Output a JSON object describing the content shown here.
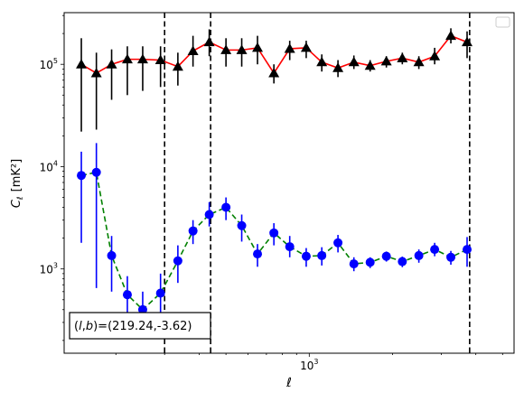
{
  "chart_data": {
    "type": "scatter",
    "title": "",
    "xlabel": "ℓ",
    "ylabel_symbol": "C",
    "ylabel_subscript": "ℓ",
    "ylabel_units": "[mK²]",
    "xscale": "log",
    "yscale": "log",
    "xlim": [
      130,
      5500
    ],
    "ylim": [
      150,
      320000
    ],
    "grid": false,
    "legend": "top-right (empty box)",
    "x_major_ticks": [
      {
        "value": 1000,
        "base": "10",
        "exponent": "3"
      }
    ],
    "y_major_ticks": [
      {
        "value": 1000,
        "base": "10",
        "exponent": "3"
      },
      {
        "value": 10000,
        "base": "10",
        "exponent": "4"
      },
      {
        "value": 100000,
        "base": "10",
        "exponent": "5"
      }
    ],
    "vlines": [
      300,
      440,
      3800
    ],
    "annotation": {
      "text_prefix": "(",
      "l": "l",
      "comma": ",",
      "b": "b",
      "text_suffix": ")=(219.24,-3.62)"
    },
    "series": [
      {
        "marker": "triangle",
        "color": "#000000",
        "line_color": "#ff0000",
        "line_style": "solid",
        "errorbar_color": "#000000",
        "points": [
          {
            "x": 150,
            "y": 100000,
            "lo": 22000,
            "hi": 180000
          },
          {
            "x": 170,
            "y": 82000,
            "lo": 23000,
            "hi": 130000
          },
          {
            "x": 193,
            "y": 100000,
            "lo": 45000,
            "hi": 140000
          },
          {
            "x": 220,
            "y": 112000,
            "lo": 50000,
            "hi": 150000
          },
          {
            "x": 250,
            "y": 112000,
            "lo": 55000,
            "hi": 150000
          },
          {
            "x": 290,
            "y": 110000,
            "lo": 60000,
            "hi": 150000
          },
          {
            "x": 335,
            "y": 95000,
            "lo": 62000,
            "hi": 130000
          },
          {
            "x": 380,
            "y": 135000,
            "lo": 95000,
            "hi": 190000
          },
          {
            "x": 435,
            "y": 165000,
            "lo": 120000,
            "hi": 220000
          },
          {
            "x": 500,
            "y": 138000,
            "lo": 95000,
            "hi": 180000
          },
          {
            "x": 570,
            "y": 138000,
            "lo": 95000,
            "hi": 180000
          },
          {
            "x": 650,
            "y": 145000,
            "lo": 100000,
            "hi": 190000
          },
          {
            "x": 745,
            "y": 82000,
            "lo": 65000,
            "hi": 100000
          },
          {
            "x": 850,
            "y": 142000,
            "lo": 110000,
            "hi": 170000
          },
          {
            "x": 975,
            "y": 145000,
            "lo": 115000,
            "hi": 170000
          },
          {
            "x": 1110,
            "y": 105000,
            "lo": 85000,
            "hi": 125000
          },
          {
            "x": 1270,
            "y": 92000,
            "lo": 75000,
            "hi": 110000
          },
          {
            "x": 1450,
            "y": 105000,
            "lo": 90000,
            "hi": 122000
          },
          {
            "x": 1660,
            "y": 97000,
            "lo": 85000,
            "hi": 110000
          },
          {
            "x": 1900,
            "y": 107000,
            "lo": 93000,
            "hi": 120000
          },
          {
            "x": 2170,
            "y": 115000,
            "lo": 100000,
            "hi": 130000
          },
          {
            "x": 2490,
            "y": 105000,
            "lo": 90000,
            "hi": 120000
          },
          {
            "x": 2840,
            "y": 120000,
            "lo": 100000,
            "hi": 145000
          },
          {
            "x": 3250,
            "y": 190000,
            "lo": 160000,
            "hi": 225000
          },
          {
            "x": 3720,
            "y": 165000,
            "lo": 115000,
            "hi": 210000
          }
        ]
      },
      {
        "marker": "circle",
        "color": "#0000ff",
        "line_color": "#008000",
        "line_style": "dashed",
        "errorbar_color": "#0000ff",
        "points": [
          {
            "x": 150,
            "y": 8200,
            "lo": 1800,
            "hi": 14000
          },
          {
            "x": 170,
            "y": 8800,
            "lo": 650,
            "hi": 17000
          },
          {
            "x": 193,
            "y": 1350,
            "lo": 600,
            "hi": 2100
          },
          {
            "x": 220,
            "y": 560,
            "lo": 250,
            "hi": 850
          },
          {
            "x": 250,
            "y": 400,
            "lo": 250,
            "hi": 600
          },
          {
            "x": 290,
            "y": 580,
            "lo": 240,
            "hi": 900
          },
          {
            "x": 335,
            "y": 1200,
            "lo": 730,
            "hi": 1700
          },
          {
            "x": 380,
            "y": 2350,
            "lo": 1750,
            "hi": 3000
          },
          {
            "x": 435,
            "y": 3400,
            "lo": 2600,
            "hi": 4500
          },
          {
            "x": 500,
            "y": 4000,
            "lo": 3000,
            "hi": 5000
          },
          {
            "x": 570,
            "y": 2650,
            "lo": 1850,
            "hi": 3400
          },
          {
            "x": 650,
            "y": 1400,
            "lo": 1050,
            "hi": 1750
          },
          {
            "x": 745,
            "y": 2250,
            "lo": 1700,
            "hi": 2800
          },
          {
            "x": 850,
            "y": 1650,
            "lo": 1300,
            "hi": 2100
          },
          {
            "x": 975,
            "y": 1330,
            "lo": 1050,
            "hi": 1600
          },
          {
            "x": 1110,
            "y": 1350,
            "lo": 1080,
            "hi": 1630
          },
          {
            "x": 1270,
            "y": 1800,
            "lo": 1450,
            "hi": 2150
          },
          {
            "x": 1450,
            "y": 1120,
            "lo": 950,
            "hi": 1300
          },
          {
            "x": 1660,
            "y": 1160,
            "lo": 1020,
            "hi": 1300
          },
          {
            "x": 1900,
            "y": 1330,
            "lo": 1180,
            "hi": 1480
          },
          {
            "x": 2170,
            "y": 1180,
            "lo": 1040,
            "hi": 1320
          },
          {
            "x": 2490,
            "y": 1350,
            "lo": 1150,
            "hi": 1550
          },
          {
            "x": 2840,
            "y": 1550,
            "lo": 1330,
            "hi": 1800
          },
          {
            "x": 3250,
            "y": 1300,
            "lo": 1100,
            "hi": 1500
          },
          {
            "x": 3720,
            "y": 1550,
            "lo": 1050,
            "hi": 2050
          }
        ]
      }
    ]
  }
}
